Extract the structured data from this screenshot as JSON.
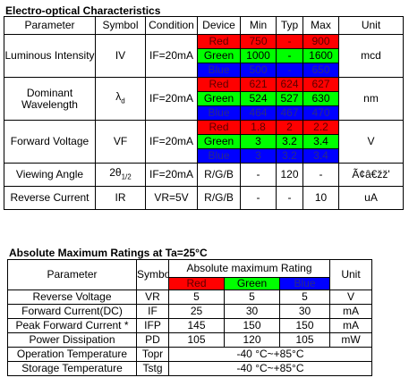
{
  "electro": {
    "title": "Electro-optical Characteristics",
    "headers": [
      "Parameter",
      "Symbol",
      "Condition",
      "Device",
      "Min",
      "Typ",
      "Max",
      "Unit"
    ],
    "rows": [
      {
        "parameter": "Luminous Intensity",
        "symbol": "IV",
        "condition": "IF=20mA",
        "unit": "mcd",
        "devices": [
          {
            "device": "Red",
            "min": 750,
            "typ": "-",
            "max": 900
          },
          {
            "device": "Green",
            "min": 1000,
            "typ": "-",
            "max": 1600
          },
          {
            "device": "Blue",
            "min": 500,
            "typ": "-",
            "max": 650
          }
        ]
      },
      {
        "parameter": "Dominant Wavelength",
        "symbol": "λ",
        "symbol_sub": "d",
        "condition": "IF=20mA",
        "unit": "nm",
        "devices": [
          {
            "device": "Red",
            "min": 621,
            "typ": 624,
            "max": 627
          },
          {
            "device": "Green",
            "min": 524,
            "typ": 527,
            "max": 630
          },
          {
            "device": "Blue",
            "min": 464,
            "typ": 467,
            "max": 470
          }
        ]
      },
      {
        "parameter": "Forward Voltage",
        "symbol": "VF",
        "condition": "IF=20mA",
        "unit": "V",
        "devices": [
          {
            "device": "Red",
            "min": 1.8,
            "typ": 2,
            "max": 2.2
          },
          {
            "device": "Green",
            "min": 3,
            "typ": 3.2,
            "max": 3.4
          },
          {
            "device": "Blue",
            "min": 3,
            "typ": 3.2,
            "max": 3.4
          }
        ]
      },
      {
        "parameter": "Viewing Angle",
        "symbol": "2θ",
        "symbol_sub": "1/2",
        "condition": "IF=20mA",
        "unit": "Ã¢â€žž'",
        "devices": [
          {
            "device": "R/G/B",
            "min": "-",
            "typ": 120,
            "max": "-"
          }
        ]
      },
      {
        "parameter": "Reverse Current",
        "symbol": "IR",
        "condition": "VR=5V",
        "unit": "uA",
        "devices": [
          {
            "device": "R/G/B",
            "min": "-",
            "typ": "-",
            "max": 10
          }
        ]
      }
    ]
  },
  "absolute": {
    "title": "Absolute Maximum Ratings at Ta=25°C",
    "headers": {
      "parameter": "Parameter",
      "symbol": "Symbol",
      "rating": "Absolute maximum Rating",
      "unit": "Unit",
      "devices": [
        "Red",
        "Green",
        "Blue"
      ]
    },
    "rows": [
      {
        "parameter": "Reverse Voltage",
        "symbol": "VR",
        "values": [
          5,
          5,
          5
        ],
        "unit": "V"
      },
      {
        "parameter": "Forward Current(DC)",
        "symbol": "IF",
        "values": [
          25,
          30,
          30
        ],
        "unit": "mA"
      },
      {
        "parameter": "Peak Forward Current *",
        "symbol": "IFP",
        "values": [
          145,
          150,
          150
        ],
        "unit": "mA"
      },
      {
        "parameter": "Power Dissipation",
        "symbol": "PD",
        "values": [
          105,
          120,
          105
        ],
        "unit": "mW"
      },
      {
        "parameter": "Operation Temperature",
        "symbol": "Topr",
        "range": "-40 °C~+85°C"
      },
      {
        "parameter": "Storage Temperature",
        "symbol": "Tstg",
        "range": "-40 °C~+85°C"
      }
    ]
  }
}
